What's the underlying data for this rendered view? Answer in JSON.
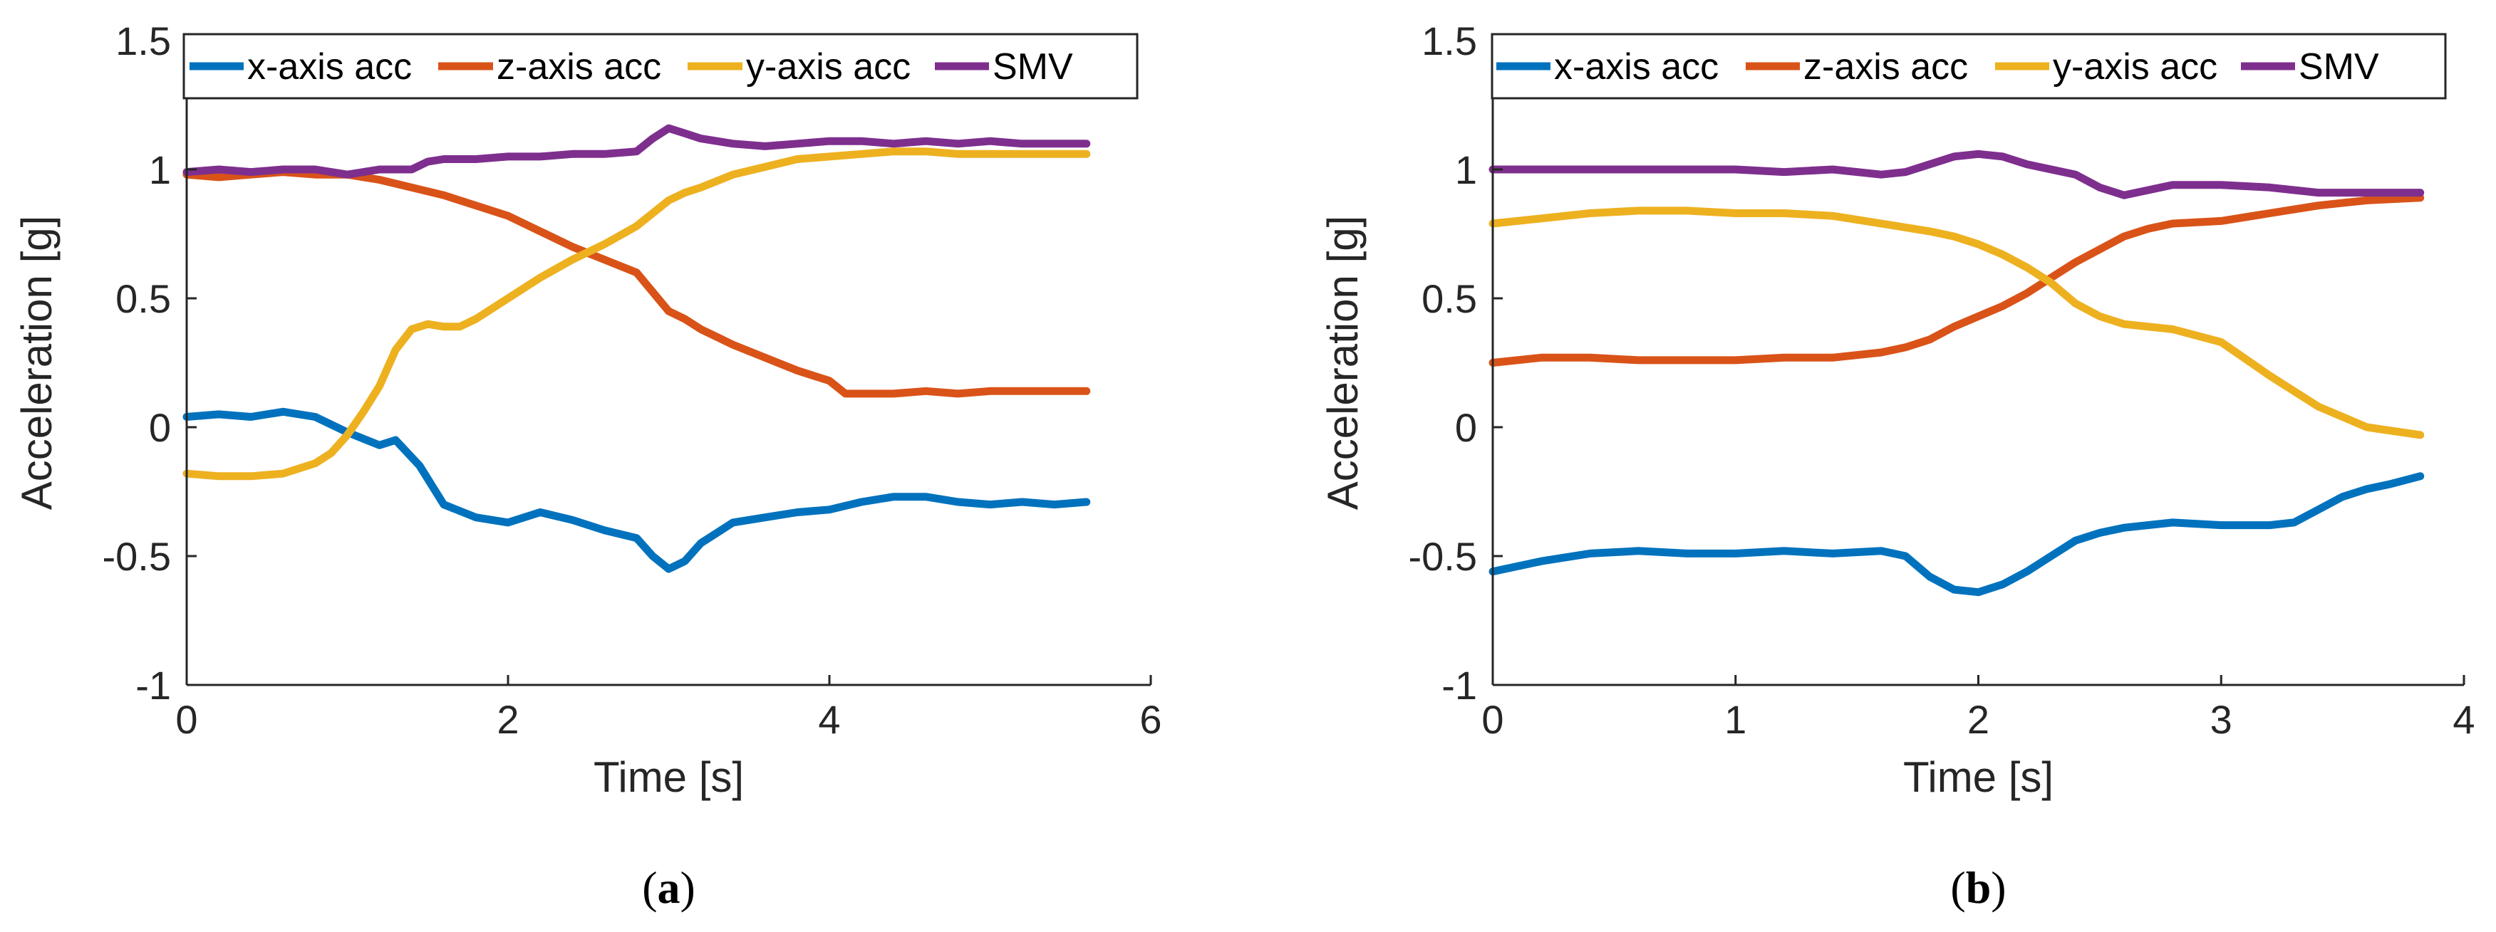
{
  "chart_data": [
    {
      "type": "line",
      "panel": "a",
      "caption_open": "(",
      "caption_letter": "a",
      "caption_close": ")",
      "xlabel": "Time [s]",
      "ylabel": "Acceleration [g]",
      "xlim": [
        0,
        6
      ],
      "ylim": [
        -1,
        1.5
      ],
      "xticks": [
        0,
        2,
        4,
        6
      ],
      "xtick_labels": [
        "0",
        "2",
        "4",
        "6"
      ],
      "yticks": [
        -1,
        -0.5,
        0,
        0.5,
        1,
        1.5
      ],
      "ytick_labels": [
        "-1",
        "-0.5",
        "0",
        "0.5",
        "1",
        "1.5"
      ],
      "grid": false,
      "legend": {
        "placement": "top",
        "orientation": "horizontal"
      },
      "series": [
        {
          "name": "x-axis acc",
          "color": "#0072BD",
          "x": [
            0,
            0.2,
            0.4,
            0.6,
            0.8,
            1.0,
            1.2,
            1.3,
            1.45,
            1.6,
            1.8,
            2.0,
            2.2,
            2.4,
            2.6,
            2.8,
            2.9,
            3.0,
            3.1,
            3.2,
            3.4,
            3.6,
            3.8,
            4.0,
            4.2,
            4.4,
            4.6,
            4.8,
            5.0,
            5.2,
            5.4,
            5.6
          ],
          "y": [
            0.04,
            0.05,
            0.04,
            0.06,
            0.04,
            -0.02,
            -0.07,
            -0.05,
            -0.15,
            -0.3,
            -0.35,
            -0.37,
            -0.33,
            -0.36,
            -0.4,
            -0.43,
            -0.5,
            -0.55,
            -0.52,
            -0.45,
            -0.37,
            -0.35,
            -0.33,
            -0.32,
            -0.29,
            -0.27,
            -0.27,
            -0.29,
            -0.3,
            -0.29,
            -0.3,
            -0.29
          ]
        },
        {
          "name": "z-axis acc",
          "color": "#D95319",
          "x": [
            0,
            0.2,
            0.4,
            0.6,
            0.8,
            1.0,
            1.2,
            1.4,
            1.6,
            1.8,
            2.0,
            2.2,
            2.4,
            2.6,
            2.8,
            3.0,
            3.1,
            3.2,
            3.4,
            3.6,
            3.8,
            4.0,
            4.1,
            4.2,
            4.4,
            4.6,
            4.8,
            5.0,
            5.2,
            5.4,
            5.6
          ],
          "y": [
            0.98,
            0.97,
            0.98,
            0.99,
            0.98,
            0.98,
            0.96,
            0.93,
            0.9,
            0.86,
            0.82,
            0.76,
            0.7,
            0.65,
            0.6,
            0.45,
            0.42,
            0.38,
            0.32,
            0.27,
            0.22,
            0.18,
            0.13,
            0.13,
            0.13,
            0.14,
            0.13,
            0.14,
            0.14,
            0.14,
            0.14
          ]
        },
        {
          "name": "y-axis acc",
          "color": "#EDB120",
          "x": [
            0,
            0.2,
            0.4,
            0.6,
            0.8,
            0.9,
            1.0,
            1.1,
            1.2,
            1.3,
            1.4,
            1.5,
            1.6,
            1.7,
            1.8,
            2.0,
            2.2,
            2.4,
            2.6,
            2.8,
            3.0,
            3.1,
            3.2,
            3.4,
            3.6,
            3.8,
            4.0,
            4.2,
            4.4,
            4.6,
            4.8,
            5.0,
            5.2,
            5.4,
            5.6
          ],
          "y": [
            -0.18,
            -0.19,
            -0.19,
            -0.18,
            -0.14,
            -0.1,
            -0.03,
            0.06,
            0.16,
            0.3,
            0.38,
            0.4,
            0.39,
            0.39,
            0.42,
            0.5,
            0.58,
            0.65,
            0.71,
            0.78,
            0.88,
            0.91,
            0.93,
            0.98,
            1.01,
            1.04,
            1.05,
            1.06,
            1.07,
            1.07,
            1.06,
            1.06,
            1.06,
            1.06,
            1.06
          ]
        },
        {
          "name": "SMV",
          "color": "#7E2F8E",
          "x": [
            0,
            0.2,
            0.4,
            0.6,
            0.8,
            1.0,
            1.2,
            1.4,
            1.5,
            1.6,
            1.8,
            2.0,
            2.2,
            2.4,
            2.6,
            2.8,
            2.9,
            3.0,
            3.1,
            3.2,
            3.4,
            3.6,
            3.8,
            4.0,
            4.2,
            4.4,
            4.6,
            4.8,
            5.0,
            5.2,
            5.4,
            5.6
          ],
          "y": [
            0.99,
            1.0,
            0.99,
            1.0,
            1.0,
            0.98,
            1.0,
            1.0,
            1.03,
            1.04,
            1.04,
            1.05,
            1.05,
            1.06,
            1.06,
            1.07,
            1.12,
            1.16,
            1.14,
            1.12,
            1.1,
            1.09,
            1.1,
            1.11,
            1.11,
            1.1,
            1.11,
            1.1,
            1.11,
            1.1,
            1.1,
            1.1
          ]
        }
      ]
    },
    {
      "type": "line",
      "panel": "b",
      "caption_open": "(",
      "caption_letter": "b",
      "caption_close": ")",
      "xlabel": "Time [s]",
      "ylabel": "Acceleration [g]",
      "xlim": [
        0,
        4
      ],
      "ylim": [
        -1,
        1.5
      ],
      "xticks": [
        0,
        1,
        2,
        3,
        4
      ],
      "xtick_labels": [
        "0",
        "1",
        "2",
        "3",
        "4"
      ],
      "yticks": [
        -1,
        -0.5,
        0,
        0.5,
        1,
        1.5
      ],
      "ytick_labels": [
        "-1",
        "-0.5",
        "0",
        "0.5",
        "1",
        "1.5"
      ],
      "grid": false,
      "legend": {
        "placement": "top",
        "orientation": "horizontal"
      },
      "series": [
        {
          "name": "x-axis acc",
          "color": "#0072BD",
          "x": [
            0,
            0.2,
            0.4,
            0.6,
            0.8,
            1.0,
            1.2,
            1.4,
            1.6,
            1.7,
            1.8,
            1.9,
            2.0,
            2.1,
            2.2,
            2.3,
            2.4,
            2.5,
            2.6,
            2.8,
            3.0,
            3.2,
            3.3,
            3.4,
            3.5,
            3.6,
            3.7,
            3.82
          ],
          "y": [
            -0.56,
            -0.52,
            -0.49,
            -0.48,
            -0.49,
            -0.49,
            -0.48,
            -0.49,
            -0.48,
            -0.5,
            -0.58,
            -0.63,
            -0.64,
            -0.61,
            -0.56,
            -0.5,
            -0.44,
            -0.41,
            -0.39,
            -0.37,
            -0.38,
            -0.38,
            -0.37,
            -0.32,
            -0.27,
            -0.24,
            -0.22,
            -0.19
          ]
        },
        {
          "name": "z-axis acc",
          "color": "#D95319",
          "x": [
            0,
            0.2,
            0.4,
            0.6,
            0.8,
            1.0,
            1.2,
            1.4,
            1.6,
            1.7,
            1.8,
            1.9,
            2.0,
            2.1,
            2.2,
            2.3,
            2.4,
            2.5,
            2.6,
            2.7,
            2.8,
            3.0,
            3.2,
            3.4,
            3.6,
            3.82
          ],
          "y": [
            0.25,
            0.27,
            0.27,
            0.26,
            0.26,
            0.26,
            0.27,
            0.27,
            0.29,
            0.31,
            0.34,
            0.39,
            0.43,
            0.47,
            0.52,
            0.58,
            0.64,
            0.69,
            0.74,
            0.77,
            0.79,
            0.8,
            0.83,
            0.86,
            0.88,
            0.89
          ]
        },
        {
          "name": "y-axis acc",
          "color": "#EDB120",
          "x": [
            0,
            0.2,
            0.4,
            0.6,
            0.8,
            1.0,
            1.2,
            1.4,
            1.6,
            1.8,
            1.9,
            2.0,
            2.1,
            2.2,
            2.3,
            2.4,
            2.5,
            2.6,
            2.8,
            3.0,
            3.2,
            3.4,
            3.6,
            3.82
          ],
          "y": [
            0.79,
            0.81,
            0.83,
            0.84,
            0.84,
            0.83,
            0.83,
            0.82,
            0.79,
            0.76,
            0.74,
            0.71,
            0.67,
            0.62,
            0.56,
            0.48,
            0.43,
            0.4,
            0.38,
            0.33,
            0.2,
            0.08,
            0.0,
            -0.03
          ]
        },
        {
          "name": "SMV",
          "color": "#7E2F8E",
          "x": [
            0,
            0.2,
            0.4,
            0.6,
            0.8,
            1.0,
            1.2,
            1.4,
            1.6,
            1.7,
            1.8,
            1.9,
            2.0,
            2.1,
            2.2,
            2.3,
            2.4,
            2.5,
            2.6,
            2.7,
            2.8,
            3.0,
            3.2,
            3.4,
            3.6,
            3.82
          ],
          "y": [
            1.0,
            1.0,
            1.0,
            1.0,
            1.0,
            1.0,
            0.99,
            1.0,
            0.98,
            0.99,
            1.02,
            1.05,
            1.06,
            1.05,
            1.02,
            1.0,
            0.98,
            0.93,
            0.9,
            0.92,
            0.94,
            0.94,
            0.93,
            0.91,
            0.91,
            0.91
          ]
        }
      ]
    }
  ]
}
